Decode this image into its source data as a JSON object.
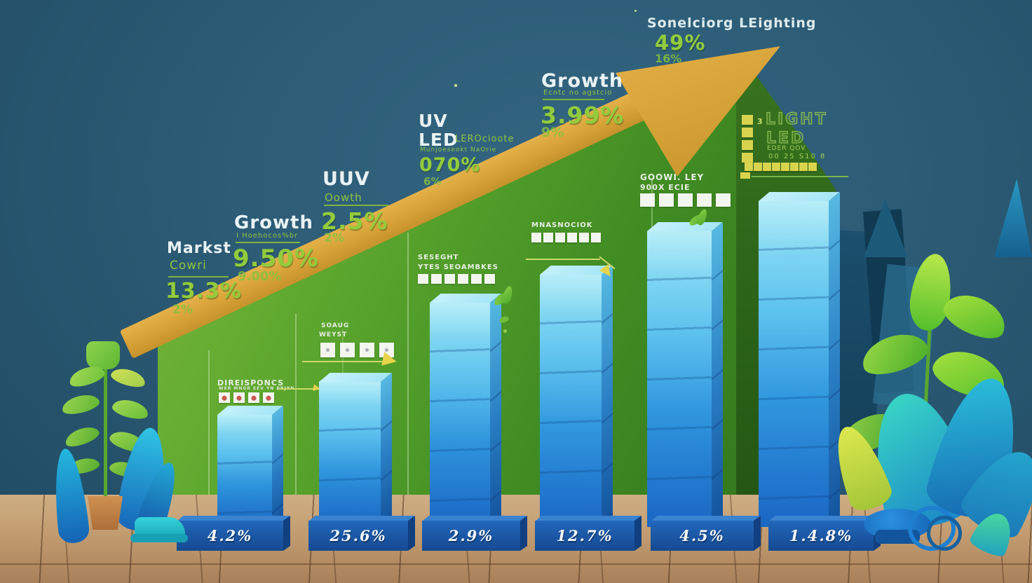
{
  "chart_data": {
    "type": "bar",
    "title": "Sonelciorg LEighting",
    "categories": [
      "4.2%",
      "25.6%",
      "2.9%",
      "12.7%",
      "4.5%",
      "1.4.8%"
    ],
    "values": [
      33,
      44,
      68,
      77,
      91,
      100
    ],
    "unit": "relative bar height, % of tallest bar",
    "xlabel": "",
    "ylabel": "",
    "grid": "off",
    "legend_position": "none",
    "annotations": [
      {
        "text": "Markst Cowri",
        "value": "13.3%",
        "secondary": "2%"
      },
      {
        "text": "Growth",
        "value": "9.50%",
        "secondary": "9.00%"
      },
      {
        "text": "UUV Oowth",
        "value": "2.5%",
        "secondary": "2%"
      },
      {
        "text": "UV LED LEROcioote",
        "value": "070%",
        "secondary": "6%"
      },
      {
        "text": "Growth",
        "value": "3.99%",
        "secondary": "9%"
      },
      {
        "text": "Sonelciorg LEighting",
        "value": "49%",
        "secondary": "16%"
      }
    ]
  },
  "callouts": {
    "market": {
      "heading": "Markst",
      "sub": "Cowri",
      "big": "13.3%",
      "small": "2%"
    },
    "growth1": {
      "heading": "Growth",
      "sub": "I Hoehocos%br",
      "big": "9.50%",
      "small": "9.00%"
    },
    "uuv": {
      "heading": "UUV",
      "sub": "Oowth",
      "big": "2.5%",
      "small": "2%"
    },
    "uvled": {
      "heading1": "UV",
      "heading2": "LED",
      "side": "LEROcioote",
      "sub": "Munjoeseokt NaOrie",
      "big": "070%",
      "small": "6%"
    },
    "growth2": {
      "heading": "Growth",
      "sub": "Ecntc no agstcio",
      "big": "3.99%",
      "small": "9%"
    },
    "top": {
      "heading": "Sonelciorg LEighting",
      "big": "49%",
      "small": "16%"
    }
  },
  "mini": {
    "goowi": {
      "l1": "GOOWI. LEY",
      "l2": "900X ECIE",
      "squares": 5
    },
    "lightled": {
      "l1": "LIGHT",
      "l2": "LED",
      "l3": "EDER QOV",
      "l4": "00 25 S10 8",
      "tick": "3",
      "col_squares": 4,
      "row_squares": 8
    },
    "mnas": {
      "l1": "MNASNOCIOK",
      "squares": 6
    },
    "seseght": {
      "l1": "SESEGHT",
      "l2": "YTES SEOAMBKES",
      "squares": 6
    },
    "soaug": {
      "l1": "SOAUG",
      "l2": "WEYST",
      "squares": 4
    },
    "direis": {
      "l1": "DIREISPONCS",
      "l2": "WER MNGR EEV YN BRJYN",
      "squares": 4
    }
  },
  "bars": {
    "labels": [
      "4.2%",
      "25.6%",
      "2.9%",
      "12.7%",
      "4.5%",
      "1.4.8%"
    ]
  },
  "colors": {
    "accent_green": "#8dc63f",
    "value_green": "#92cc3c",
    "gold": "#d9a637",
    "bar_blue": "#2f95dd",
    "pedestal_blue": "#1d5fae",
    "mountain_green": "#5aa52d",
    "background": "#2b5a74",
    "floor_tan": "#c29c70",
    "white_text": "#e9f2f4"
  }
}
